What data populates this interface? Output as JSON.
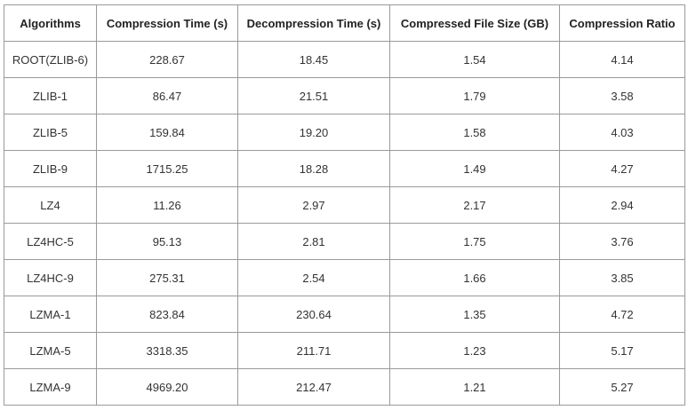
{
  "table": {
    "header": [
      "Algorithms",
      "Compression Time (s)",
      "Decompression Time (s)",
      "Compressed File Size (GB)",
      "Compression Ratio"
    ],
    "rows": [
      [
        "ROOT(ZLIB-6)",
        "228.67",
        "18.45",
        "1.54",
        "4.14"
      ],
      [
        "ZLIB-1",
        "86.47",
        "21.51",
        "1.79",
        "3.58"
      ],
      [
        "ZLIB-5",
        "159.84",
        "19.20",
        "1.58",
        "4.03"
      ],
      [
        "ZLIB-9",
        "1715.25",
        "18.28",
        "1.49",
        "4.27"
      ],
      [
        "LZ4",
        "11.26",
        "2.97",
        "2.17",
        "2.94"
      ],
      [
        "LZ4HC-5",
        "95.13",
        "2.81",
        "1.75",
        "3.76"
      ],
      [
        "LZ4HC-9",
        "275.31",
        "2.54",
        "1.66",
        "3.85"
      ],
      [
        "LZMA-1",
        "823.84",
        "230.64",
        "1.35",
        "4.72"
      ],
      [
        "LZMA-5",
        "3318.35",
        "211.71",
        "1.23",
        "5.17"
      ],
      [
        "LZMA-9",
        "4969.20",
        "212.47",
        "1.21",
        "5.27"
      ]
    ]
  }
}
